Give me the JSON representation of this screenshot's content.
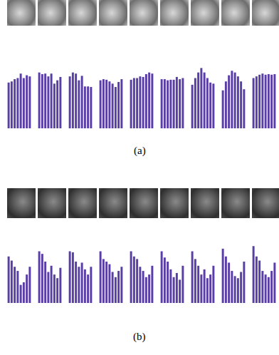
{
  "captions": [
    "(a)",
    "(b)"
  ],
  "chart_data": [
    {
      "type": "bar",
      "categories": [
        null,
        null,
        null,
        null,
        null,
        null,
        null,
        null
      ],
      "values": [
        0.82,
        0.84,
        0.88,
        0.9,
        0.98,
        0.9,
        0.95,
        0.93
      ],
      "color": "#5a3ea8",
      "ylim": [
        0,
        1.2
      ],
      "yticks": [],
      "tick_labels": false
    },
    {
      "type": "bar",
      "categories": [
        null,
        null,
        null,
        null,
        null,
        null,
        null,
        null
      ],
      "values": [
        1.0,
        0.97,
        0.98,
        0.93,
        0.98,
        0.8,
        0.86,
        0.92
      ],
      "color": "#5a3ea8",
      "ylim": [
        0,
        1.2
      ],
      "yticks": [],
      "tick_labels": false
    },
    {
      "type": "bar",
      "categories": [
        null,
        null,
        null,
        null,
        null,
        null,
        null,
        null
      ],
      "values": [
        0.93,
        1.0,
        0.98,
        0.86,
        0.94,
        0.75,
        0.75,
        0.74
      ],
      "color": "#5a3ea8",
      "ylim": [
        0,
        1.2
      ],
      "yticks": [],
      "tick_labels": false
    },
    {
      "type": "bar",
      "categories": [
        null,
        null,
        null,
        null,
        null,
        null,
        null,
        null
      ],
      "values": [
        0.86,
        0.88,
        0.87,
        0.84,
        0.8,
        0.74,
        0.83,
        0.88
      ],
      "color": "#5a3ea8",
      "ylim": [
        0,
        1.2
      ],
      "yticks": [],
      "tick_labels": false
    },
    {
      "type": "bar",
      "categories": [
        null,
        null,
        null,
        null,
        null,
        null,
        null,
        null
      ],
      "values": [
        0.87,
        0.9,
        0.9,
        0.93,
        0.92,
        0.97,
        1.0,
        0.98
      ],
      "color": "#5a3ea8",
      "ylim": [
        0,
        1.2
      ],
      "yticks": [],
      "tick_labels": false
    },
    {
      "type": "bar",
      "categories": [
        null,
        null,
        null,
        null,
        null,
        null,
        null,
        null
      ],
      "values": [
        0.88,
        0.88,
        0.86,
        0.87,
        0.87,
        0.92,
        0.88,
        0.9
      ],
      "color": "#5a3ea8",
      "ylim": [
        0,
        1.2
      ],
      "yticks": [],
      "tick_labels": false
    },
    {
      "type": "bar",
      "categories": [
        null,
        null,
        null,
        null,
        null,
        null,
        null,
        null
      ],
      "values": [
        0.78,
        0.9,
        1.0,
        1.08,
        1.0,
        0.9,
        0.82,
        0.8
      ],
      "color": "#5a3ea8",
      "ylim": [
        0,
        1.2
      ],
      "yticks": [],
      "tick_labels": false
    },
    {
      "type": "bar",
      "categories": [
        null,
        null,
        null,
        null,
        null,
        null,
        null,
        null
      ],
      "values": [
        0.68,
        0.84,
        0.95,
        1.03,
        1.0,
        0.93,
        0.84,
        0.7
      ],
      "color": "#5a3ea8",
      "ylim": [
        0,
        1.2
      ],
      "yticks": [],
      "tick_labels": false
    },
    {
      "type": "bar",
      "categories": [
        null,
        null,
        null,
        null,
        null,
        null,
        null,
        null
      ],
      "values": [
        0.9,
        0.93,
        0.96,
        0.98,
        0.96,
        0.97,
        0.96,
        0.97
      ],
      "color": "#5a3ea8",
      "ylim": [
        0,
        1.2
      ],
      "yticks": [],
      "tick_labels": false
    },
    {
      "type": "bar",
      "categories": [
        null,
        null,
        null,
        null,
        null,
        null,
        null,
        null
      ],
      "values": [
        0.9,
        0.82,
        0.7,
        0.62,
        0.35,
        0.4,
        0.55,
        0.7
      ],
      "color": "#5a3ea8",
      "ylim": [
        0,
        1.2
      ],
      "yticks": [],
      "tick_labels": false
    },
    {
      "type": "bar",
      "categories": [
        null,
        null,
        null,
        null,
        null,
        null,
        null,
        null
      ],
      "values": [
        1.0,
        0.95,
        0.8,
        0.6,
        0.72,
        0.55,
        0.48,
        0.68
      ],
      "color": "#5a3ea8",
      "ylim": [
        0,
        1.2
      ],
      "yticks": [],
      "tick_labels": false
    },
    {
      "type": "bar",
      "categories": [
        null,
        null,
        null,
        null,
        null,
        null,
        null,
        null
      ],
      "values": [
        1.0,
        0.98,
        0.8,
        0.7,
        0.78,
        0.65,
        0.55,
        0.7
      ],
      "color": "#5a3ea8",
      "ylim": [
        0,
        1.2
      ],
      "yticks": [],
      "tick_labels": false
    },
    {
      "type": "bar",
      "categories": [
        null,
        null,
        null,
        null,
        null,
        null,
        null,
        null
      ],
      "values": [
        1.0,
        0.85,
        0.8,
        0.75,
        0.6,
        0.5,
        0.62,
        0.7
      ],
      "color": "#5a3ea8",
      "ylim": [
        0,
        1.2
      ],
      "yticks": [],
      "tick_labels": false
    },
    {
      "type": "bar",
      "categories": [
        null,
        null,
        null,
        null,
        null,
        null,
        null,
        null
      ],
      "values": [
        1.0,
        0.9,
        0.85,
        0.7,
        0.62,
        0.5,
        0.55,
        0.72
      ],
      "color": "#5a3ea8",
      "ylim": [
        0,
        1.2
      ],
      "yticks": [],
      "tick_labels": false
    },
    {
      "type": "bar",
      "categories": [
        null,
        null,
        null,
        null,
        null,
        null,
        null,
        null
      ],
      "values": [
        1.0,
        0.88,
        0.8,
        0.65,
        0.5,
        0.58,
        0.45,
        0.72
      ],
      "color": "#5a3ea8",
      "ylim": [
        0,
        1.2
      ],
      "yticks": [],
      "tick_labels": false
    },
    {
      "type": "bar",
      "categories": [
        null,
        null,
        null,
        null,
        null,
        null,
        null,
        null
      ],
      "values": [
        1.0,
        0.85,
        0.72,
        0.55,
        0.65,
        0.48,
        0.55,
        0.72
      ],
      "color": "#5a3ea8",
      "ylim": [
        0,
        1.2
      ],
      "yticks": [],
      "tick_labels": false
    },
    {
      "type": "bar",
      "categories": [
        null,
        null,
        null,
        null,
        null,
        null,
        null,
        null
      ],
      "values": [
        1.05,
        0.9,
        0.78,
        0.62,
        0.52,
        0.48,
        0.6,
        0.8
      ],
      "color": "#5a3ea8",
      "ylim": [
        0,
        1.2
      ],
      "yticks": [],
      "tick_labels": false
    },
    {
      "type": "bar",
      "categories": [
        null,
        null,
        null,
        null,
        null,
        null,
        null,
        null
      ],
      "values": [
        1.1,
        0.9,
        0.82,
        0.62,
        0.55,
        0.5,
        0.62,
        0.78
      ],
      "color": "#5a3ea8",
      "ylim": [
        0,
        1.2
      ],
      "yticks": [],
      "tick_labels": false
    }
  ]
}
